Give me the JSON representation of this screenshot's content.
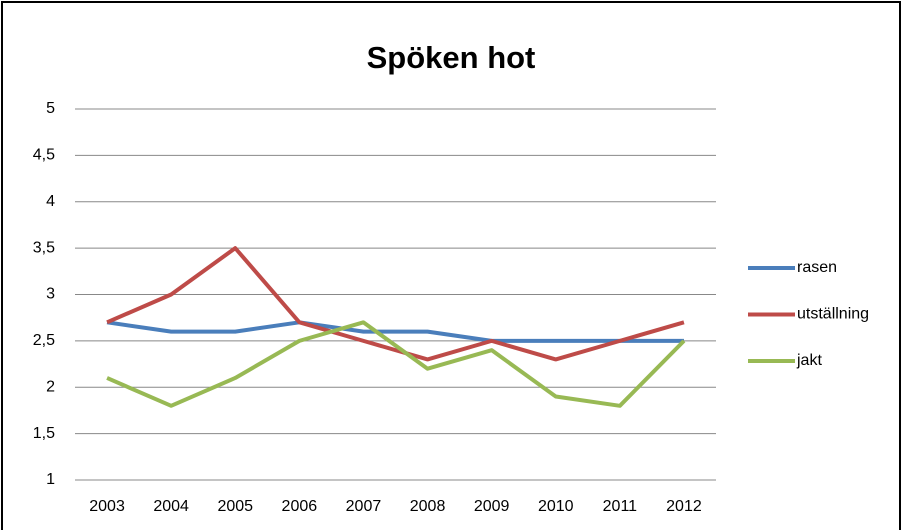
{
  "chart_data": {
    "type": "line",
    "title": "Spöken hot",
    "categories": [
      "2003",
      "2004",
      "2005",
      "2006",
      "2007",
      "2008",
      "2009",
      "2010",
      "2011",
      "2012"
    ],
    "series": [
      {
        "name": "rasen",
        "color": "#4a7ebb",
        "values": [
          2.7,
          2.6,
          2.6,
          2.7,
          2.6,
          2.6,
          2.5,
          2.5,
          2.5,
          2.5
        ]
      },
      {
        "name": "utställning",
        "color": "#be4b48",
        "values": [
          2.7,
          3.0,
          3.5,
          2.7,
          2.5,
          2.3,
          2.5,
          2.3,
          2.5,
          2.7
        ]
      },
      {
        "name": "jakt",
        "color": "#98b954",
        "values": [
          2.1,
          1.8,
          2.1,
          2.5,
          2.7,
          2.2,
          2.4,
          1.9,
          1.8,
          2.5
        ]
      }
    ],
    "ylim": [
      1,
      5
    ],
    "yticks": [
      1,
      {
        "value": 1.5,
        "label": "1,5"
      },
      2,
      {
        "value": 2.5,
        "label": "2,5"
      },
      3,
      {
        "value": 3.5,
        "label": "3,5"
      },
      4,
      {
        "value": 4.5,
        "label": "4,5"
      },
      5
    ],
    "grid": true,
    "legend": "right"
  }
}
